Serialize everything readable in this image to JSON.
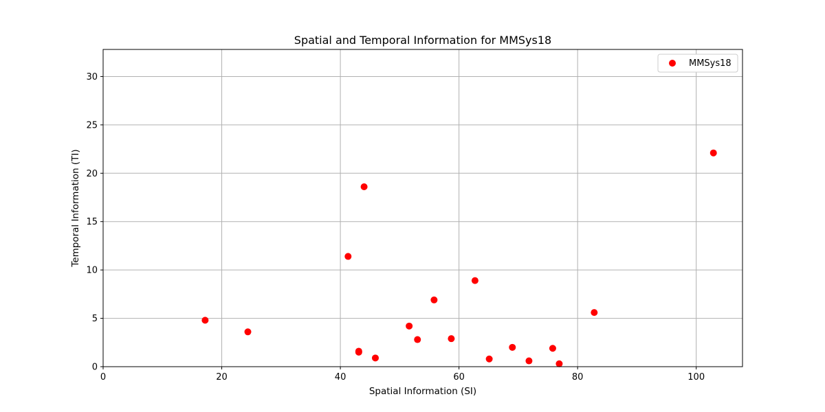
{
  "chart_data": {
    "type": "scatter",
    "title": "Spatial and Temporal Information for MMSys18",
    "xlabel": "Spatial Information (SI)",
    "ylabel": "Temporal Information (TI)",
    "xlim": [
      0,
      107.8
    ],
    "ylim": [
      0,
      32.8
    ],
    "xticks": [
      0,
      20,
      40,
      60,
      80,
      100
    ],
    "yticks": [
      0,
      5,
      10,
      15,
      20,
      25,
      30
    ],
    "grid": true,
    "legend_position": "top-right",
    "series": [
      {
        "name": "MMSys18",
        "color": "#ff0000",
        "points": [
          {
            "x": 17.2,
            "y": 4.8
          },
          {
            "x": 24.4,
            "y": 3.6
          },
          {
            "x": 41.3,
            "y": 11.4
          },
          {
            "x": 43.1,
            "y": 1.5
          },
          {
            "x": 43.1,
            "y": 1.6
          },
          {
            "x": 44.0,
            "y": 18.6
          },
          {
            "x": 45.9,
            "y": 0.9
          },
          {
            "x": 51.6,
            "y": 4.2
          },
          {
            "x": 53.0,
            "y": 2.8
          },
          {
            "x": 55.8,
            "y": 6.9
          },
          {
            "x": 58.7,
            "y": 2.9
          },
          {
            "x": 62.7,
            "y": 8.9
          },
          {
            "x": 65.1,
            "y": 0.8
          },
          {
            "x": 69.0,
            "y": 2.0
          },
          {
            "x": 71.8,
            "y": 0.6
          },
          {
            "x": 75.8,
            "y": 1.9
          },
          {
            "x": 76.9,
            "y": 0.3
          },
          {
            "x": 82.8,
            "y": 5.6
          },
          {
            "x": 102.9,
            "y": 22.1
          }
        ]
      }
    ]
  }
}
